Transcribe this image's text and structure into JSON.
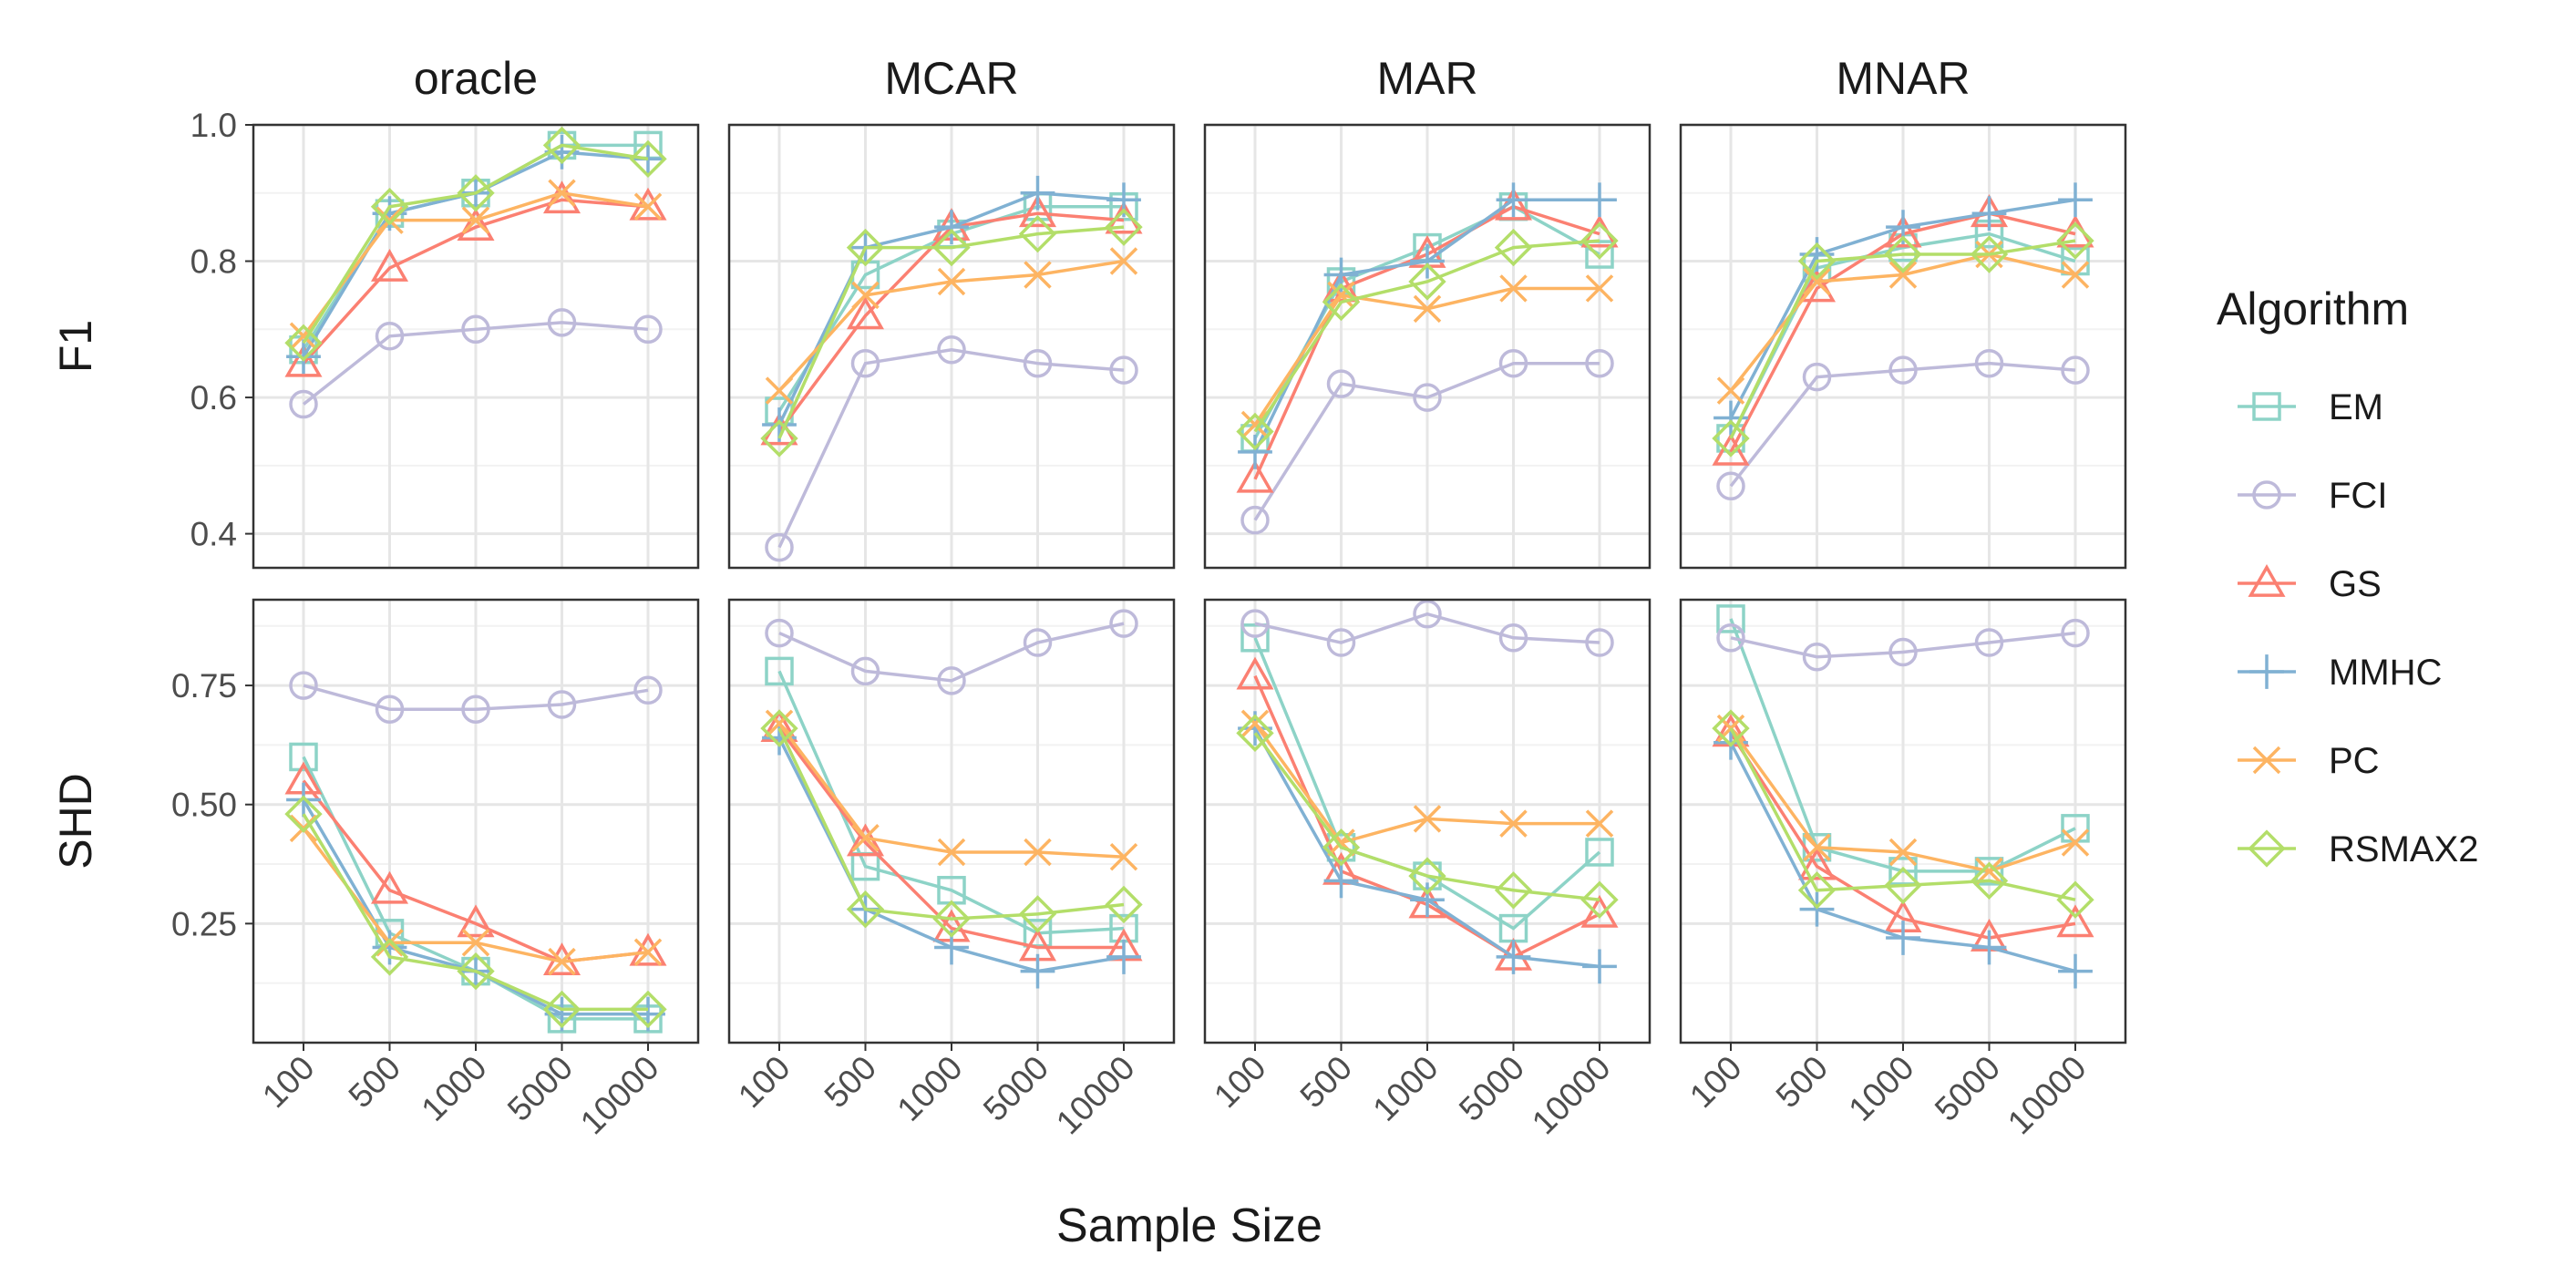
{
  "chart_data": {
    "type": "line",
    "facets": [
      "oracle",
      "MCAR",
      "MAR",
      "MNAR"
    ],
    "metrics": [
      "F1",
      "SHD"
    ],
    "x": [
      "100",
      "500",
      "1000",
      "5000",
      "10000"
    ],
    "xlabel": "Sample Size",
    "legend": {
      "title": "Algorithm",
      "position": "right"
    },
    "grid": true,
    "axes": {
      "F1": {
        "ylim": [
          0.35,
          1.0
        ],
        "ticks": [
          0.4,
          0.6,
          0.8,
          1.0
        ],
        "tick_labels": [
          "0.4",
          "0.6",
          "0.8",
          "1.0"
        ]
      },
      "SHD": {
        "ylim": [
          0.0,
          0.93
        ],
        "ticks": [
          0.25,
          0.5,
          0.75
        ],
        "tick_labels": [
          "0.25",
          "0.50",
          "0.75"
        ]
      }
    },
    "series": [
      {
        "name": "EM",
        "color": "#8dd3c7",
        "marker": "square",
        "F1": {
          "oracle": [
            0.67,
            0.87,
            0.9,
            0.97,
            0.97
          ],
          "MCAR": [
            0.58,
            0.78,
            0.84,
            0.88,
            0.88
          ],
          "MAR": [
            0.54,
            0.77,
            0.82,
            0.88,
            0.81
          ],
          "MNAR": [
            0.54,
            0.79,
            0.82,
            0.84,
            0.8
          ]
        },
        "SHD": {
          "oracle": [
            0.6,
            0.23,
            0.15,
            0.05,
            0.05
          ],
          "MCAR": [
            0.78,
            0.37,
            0.32,
            0.23,
            0.24
          ],
          "MAR": [
            0.85,
            0.41,
            0.35,
            0.24,
            0.4
          ],
          "MNAR": [
            0.89,
            0.41,
            0.36,
            0.36,
            0.45
          ]
        }
      },
      {
        "name": "FCI",
        "color": "#bebada",
        "marker": "circle",
        "F1": {
          "oracle": [
            0.59,
            0.69,
            0.7,
            0.71,
            0.7
          ],
          "MCAR": [
            0.38,
            0.65,
            0.67,
            0.65,
            0.64
          ],
          "MAR": [
            0.42,
            0.62,
            0.6,
            0.65,
            0.65
          ],
          "MNAR": [
            0.47,
            0.63,
            0.64,
            0.65,
            0.64
          ]
        },
        "SHD": {
          "oracle": [
            0.75,
            0.7,
            0.7,
            0.71,
            0.74
          ],
          "MCAR": [
            0.86,
            0.78,
            0.76,
            0.84,
            0.88
          ],
          "MAR": [
            0.88,
            0.84,
            0.9,
            0.85,
            0.84
          ],
          "MNAR": [
            0.85,
            0.81,
            0.82,
            0.84,
            0.86
          ]
        }
      },
      {
        "name": "GS",
        "color": "#fb8072",
        "marker": "triangle",
        "F1": {
          "oracle": [
            0.65,
            0.79,
            0.85,
            0.89,
            0.88
          ],
          "MCAR": [
            0.55,
            0.72,
            0.85,
            0.87,
            0.86
          ],
          "MAR": [
            0.48,
            0.76,
            0.81,
            0.88,
            0.84
          ],
          "MNAR": [
            0.52,
            0.76,
            0.84,
            0.87,
            0.84
          ]
        },
        "SHD": {
          "oracle": [
            0.55,
            0.32,
            0.25,
            0.17,
            0.19
          ],
          "MCAR": [
            0.66,
            0.42,
            0.24,
            0.2,
            0.2
          ],
          "MAR": [
            0.77,
            0.36,
            0.29,
            0.18,
            0.27
          ],
          "MNAR": [
            0.65,
            0.37,
            0.26,
            0.22,
            0.25
          ]
        }
      },
      {
        "name": "MMHC",
        "color": "#80b1d3",
        "marker": "plus",
        "F1": {
          "oracle": [
            0.66,
            0.87,
            0.9,
            0.96,
            0.95
          ],
          "MCAR": [
            0.56,
            0.82,
            0.85,
            0.9,
            0.89
          ],
          "MAR": [
            0.52,
            0.78,
            0.8,
            0.89,
            0.89
          ],
          "MNAR": [
            0.57,
            0.81,
            0.85,
            0.87,
            0.89
          ]
        },
        "SHD": {
          "oracle": [
            0.51,
            0.2,
            0.15,
            0.06,
            0.06
          ],
          "MCAR": [
            0.64,
            0.28,
            0.2,
            0.15,
            0.18
          ],
          "MAR": [
            0.66,
            0.34,
            0.3,
            0.18,
            0.16
          ],
          "MNAR": [
            0.63,
            0.28,
            0.22,
            0.2,
            0.15
          ]
        }
      },
      {
        "name": "PC",
        "color": "#fdb462",
        "marker": "cross",
        "F1": {
          "oracle": [
            0.69,
            0.86,
            0.86,
            0.9,
            0.88
          ],
          "MCAR": [
            0.61,
            0.75,
            0.77,
            0.78,
            0.8
          ],
          "MAR": [
            0.56,
            0.75,
            0.73,
            0.76,
            0.76
          ],
          "MNAR": [
            0.61,
            0.77,
            0.78,
            0.81,
            0.78
          ]
        },
        "SHD": {
          "oracle": [
            0.45,
            0.21,
            0.21,
            0.17,
            0.19
          ],
          "MCAR": [
            0.67,
            0.43,
            0.4,
            0.4,
            0.39
          ],
          "MAR": [
            0.67,
            0.42,
            0.47,
            0.46,
            0.46
          ],
          "MNAR": [
            0.66,
            0.41,
            0.4,
            0.36,
            0.42
          ]
        }
      },
      {
        "name": "RSMAX2",
        "color": "#b3de69",
        "marker": "diamond",
        "F1": {
          "oracle": [
            0.68,
            0.88,
            0.9,
            0.97,
            0.95
          ],
          "MCAR": [
            0.54,
            0.82,
            0.82,
            0.84,
            0.85
          ],
          "MAR": [
            0.55,
            0.74,
            0.77,
            0.82,
            0.83
          ],
          "MNAR": [
            0.54,
            0.8,
            0.81,
            0.81,
            0.83
          ]
        },
        "SHD": {
          "oracle": [
            0.48,
            0.18,
            0.15,
            0.07,
            0.07
          ],
          "MCAR": [
            0.66,
            0.28,
            0.26,
            0.27,
            0.29
          ],
          "MAR": [
            0.65,
            0.41,
            0.35,
            0.32,
            0.3
          ],
          "MNAR": [
            0.66,
            0.32,
            0.33,
            0.34,
            0.3
          ]
        }
      }
    ]
  }
}
